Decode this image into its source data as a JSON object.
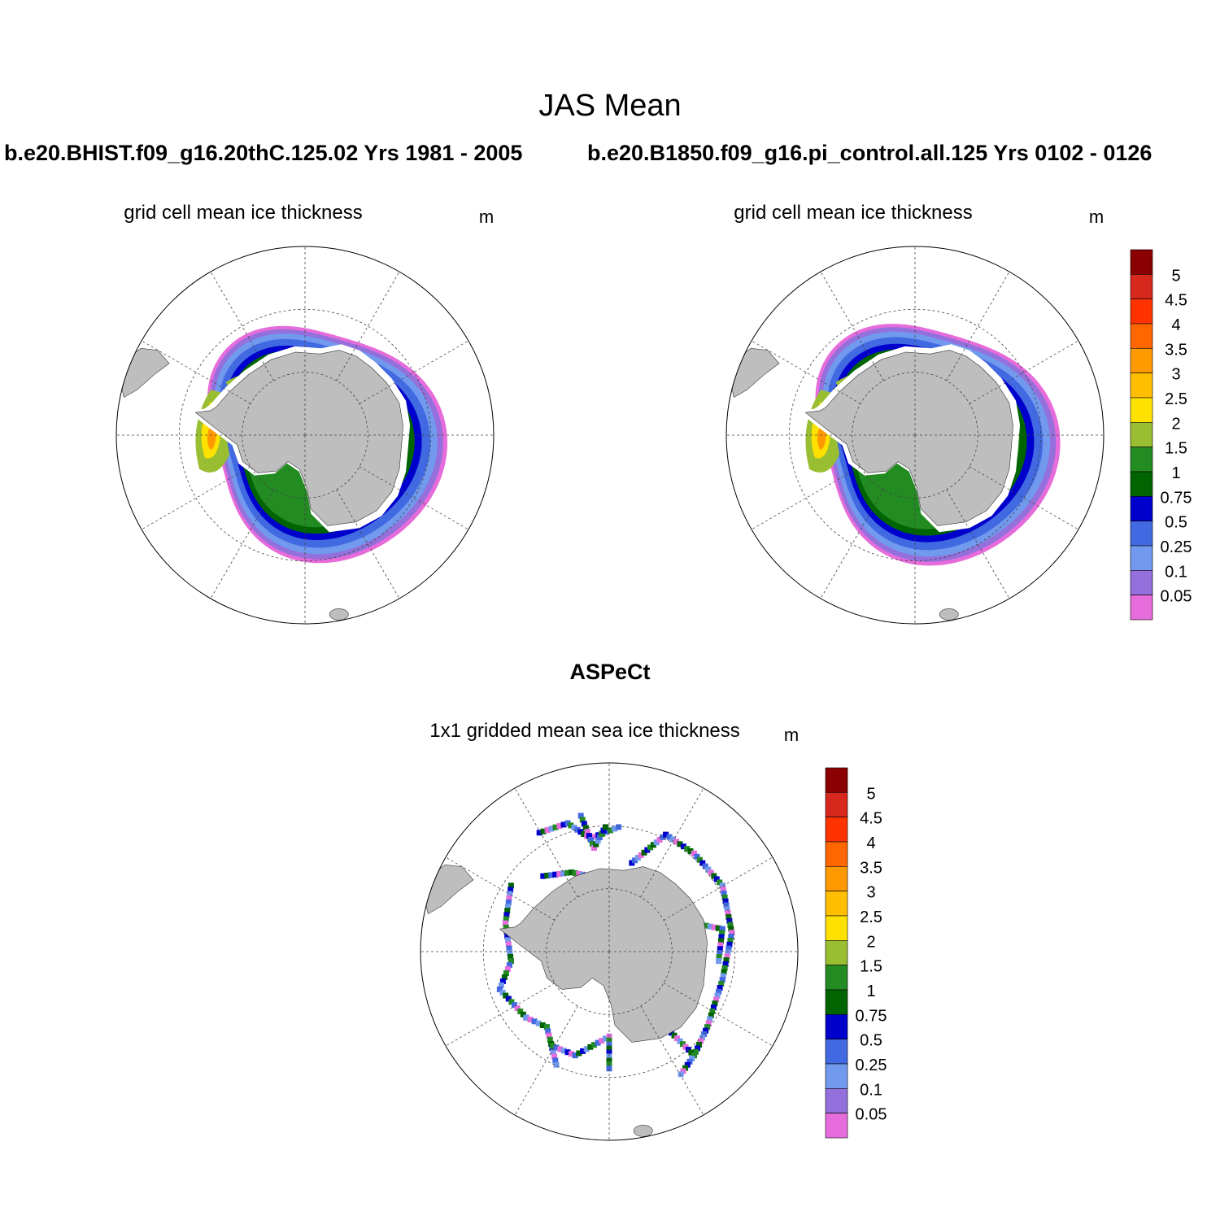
{
  "page": {
    "title": "JAS Mean",
    "case1_label": "b.e20.BHIST.f09_g16.20thC.125.02  Yrs 1981 - 2005",
    "case2_label": "b.e20.B1850.f09_g16.pi_control.all.125  Yrs 0102 - 0126",
    "obs_label": "ASPeCt"
  },
  "panels": [
    {
      "id": "case1",
      "title": "grid cell mean ice thickness",
      "units": "m",
      "kind": "model"
    },
    {
      "id": "case2",
      "title": "grid cell mean ice thickness",
      "units": "m",
      "kind": "model"
    },
    {
      "id": "obs",
      "title": "1x1 gridded mean sea ice thickness",
      "units": "m",
      "kind": "obs"
    }
  ],
  "colorbar": {
    "levels": [
      "5",
      "4.5",
      "4",
      "3.5",
      "3",
      "2.5",
      "2",
      "1.5",
      "1",
      "0.75",
      "0.5",
      "0.25",
      "0.1",
      "0.05"
    ],
    "colors": [
      "#8B0000",
      "#D7281E",
      "#FF3300",
      "#FF6600",
      "#FF9900",
      "#FFBF00",
      "#FFE100",
      "#9ABE32",
      "#228B22",
      "#006400",
      "#0000CD",
      "#4169E1",
      "#7199EE",
      "#9370DB",
      "#E66BDB"
    ]
  },
  "colors": {
    "land": "#BEBEBE",
    "ocean": "#FFFFFF"
  }
}
